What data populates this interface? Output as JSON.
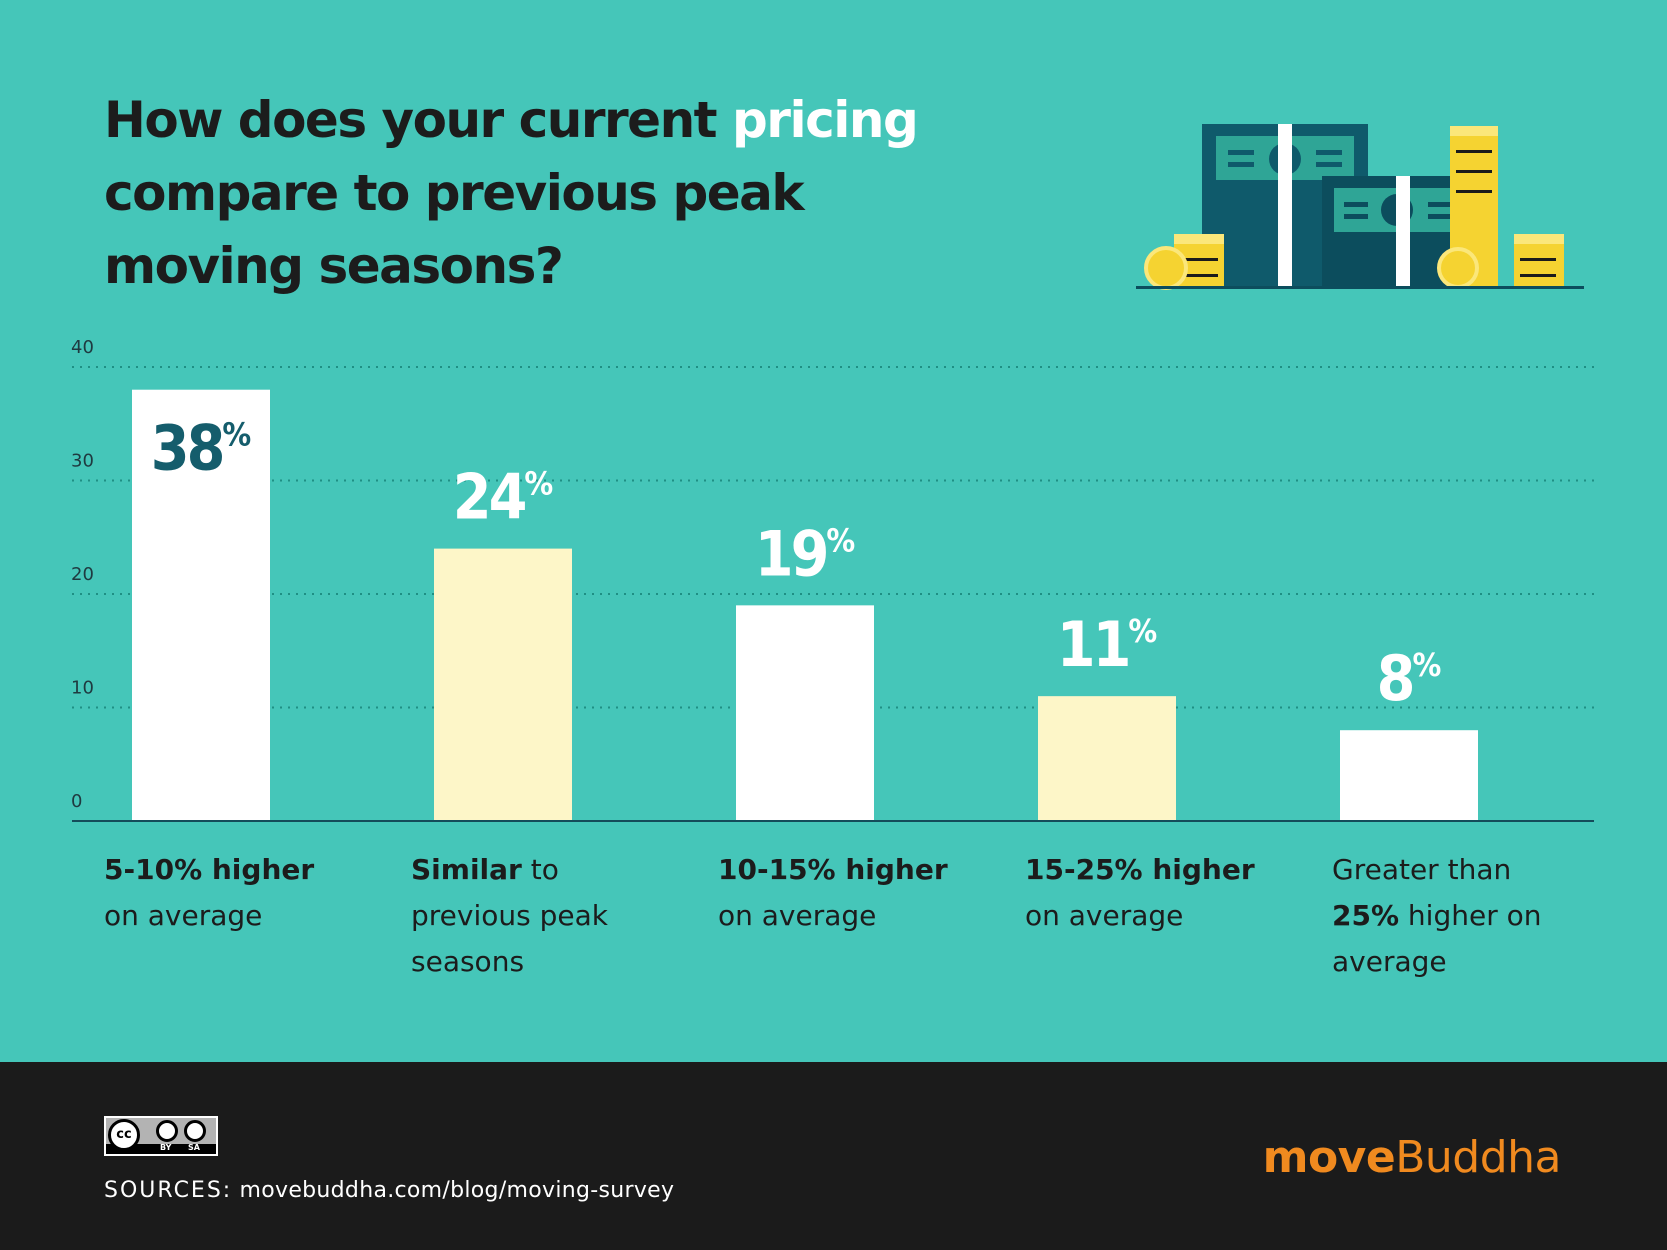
{
  "title": {
    "before": "How does your current ",
    "highlight": "pricing",
    "after": " compare to previous peak moving seasons?"
  },
  "colors": {
    "background": "#45c6b9",
    "bar_white": "#ffffff",
    "bar_cream": "#fdf6c8",
    "first_value_label": "#155d6c",
    "value_label": "#ffffff",
    "footer": "#1b1b1b",
    "brand_orange": "#f08a1f"
  },
  "chart_data": {
    "type": "bar",
    "categories": [
      "5-10% higher on average",
      "Similar to previous peak seasons",
      "10-15% higher on average",
      "15-25% higher on average",
      "Greater than 25% higher on average"
    ],
    "values": [
      38,
      24,
      19,
      11,
      8
    ],
    "value_labels": [
      "38",
      "24",
      "19",
      "11",
      "8"
    ],
    "value_suffix": "%",
    "yticks": [
      "0",
      "10",
      "20",
      "30",
      "40"
    ],
    "ylim": [
      0,
      40
    ],
    "grid": "dotted horizontal",
    "bar_colors": [
      "white",
      "cream",
      "white",
      "cream",
      "white"
    ]
  },
  "categories_display": [
    {
      "bold": "5-10% higher",
      "rest": "on average"
    },
    {
      "bold": "Similar",
      "rest": " to previous peak seasons"
    },
    {
      "bold": "10-15% higher",
      "rest": "on average"
    },
    {
      "bold": "15-25% higher",
      "rest": "on average"
    },
    {
      "pre": "Greater than ",
      "bold": "25%",
      "rest": " higher on average"
    }
  ],
  "footer": {
    "license_badge": [
      "BY",
      "SA"
    ],
    "license_cc": "cc",
    "sources_label": "SOURCES:",
    "sources_url": "movebuddha.com/blog/moving-survey",
    "brand_part1": "move",
    "brand_part2": "Buddha"
  },
  "illustration": {
    "icon": "money-stacks-and-coins-icon"
  }
}
